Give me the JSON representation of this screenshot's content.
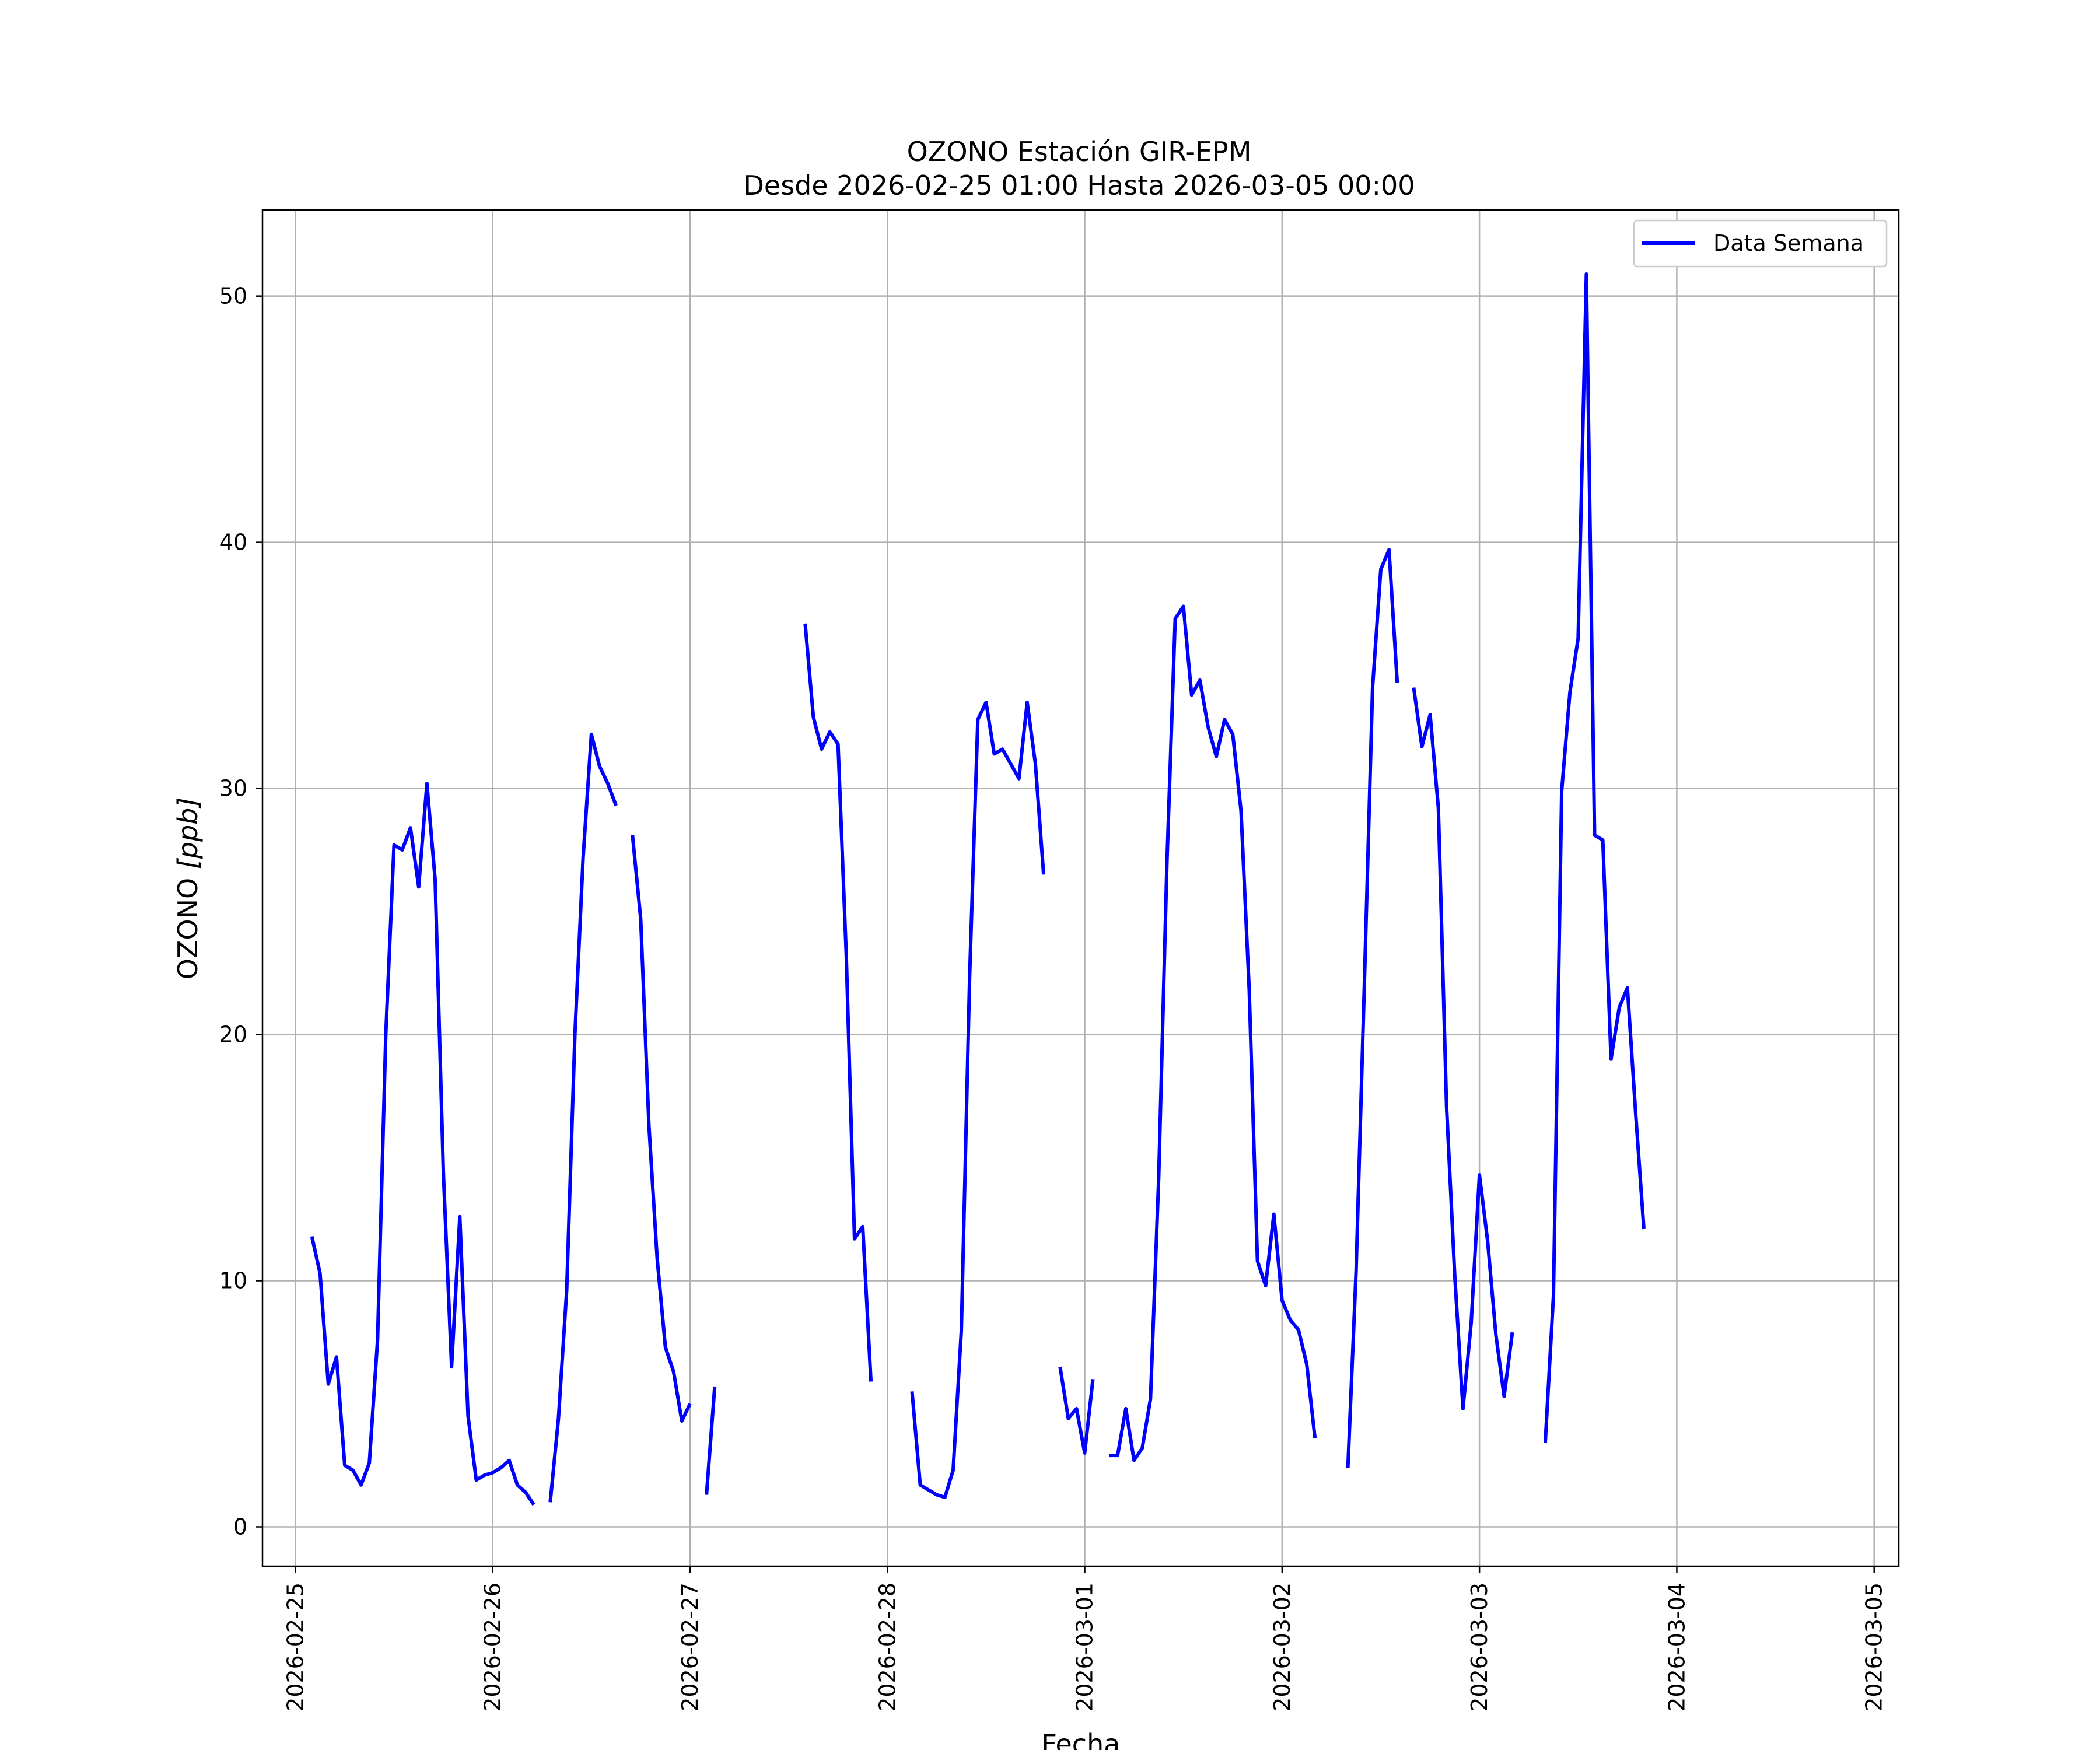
{
  "chart_data": {
    "type": "line",
    "title": "OZONO Estación GIR-EPM",
    "subtitle": "Desde 2026-02-25 01:00 Hasta 2026-03-05 00:00",
    "xlabel": "Fecha",
    "ylabel": "OZONO [ppb]",
    "ylabel_main": "OZONO ",
    "ylabel_unit": "[ppb]",
    "xlim": [
      "2026-02-24 20:00",
      "2026-03-05 03:00"
    ],
    "ylim": [
      -1.6,
      53.5
    ],
    "x_ticks": [
      "2026-02-25",
      "2026-02-26",
      "2026-02-27",
      "2026-02-28",
      "2026-03-01",
      "2026-03-02",
      "2026-03-03",
      "2026-03-04",
      "2026-03-05"
    ],
    "y_ticks": [
      0,
      10,
      20,
      30,
      40,
      50
    ],
    "grid": true,
    "legend_position": "upper right",
    "series": [
      {
        "name": "Data Semana",
        "color": "#0000ff",
        "segments": [
          [
            [
              "2026-02-25 02:00",
              11.8
            ],
            [
              "2026-02-25 03:00",
              10.3
            ],
            [
              "2026-02-25 04:00",
              5.8
            ],
            [
              "2026-02-25 05:00",
              6.9
            ],
            [
              "2026-02-25 06:00",
              2.5
            ],
            [
              "2026-02-25 07:00",
              2.3
            ],
            [
              "2026-02-25 08:00",
              1.7
            ],
            [
              "2026-02-25 09:00",
              2.6
            ],
            [
              "2026-02-25 10:00",
              7.6
            ],
            [
              "2026-02-25 11:00",
              20.0
            ],
            [
              "2026-02-25 12:00",
              27.7
            ],
            [
              "2026-02-25 13:00",
              27.5
            ],
            [
              "2026-02-25 14:00",
              28.4
            ],
            [
              "2026-02-25 15:00",
              26.0
            ],
            [
              "2026-02-25 16:00",
              30.2
            ],
            [
              "2026-02-25 17:00",
              26.3
            ],
            [
              "2026-02-25 18:00",
              14.4
            ],
            [
              "2026-02-25 19:00",
              6.5
            ],
            [
              "2026-02-25 20:00",
              12.6
            ],
            [
              "2026-02-25 21:00",
              4.5
            ],
            [
              "2026-02-25 22:00",
              1.9
            ],
            [
              "2026-02-25 23:00",
              2.1
            ],
            [
              "2026-02-26 00:00",
              2.2
            ],
            [
              "2026-02-26 01:00",
              2.4
            ],
            [
              "2026-02-26 02:00",
              2.7
            ],
            [
              "2026-02-26 03:00",
              1.7
            ],
            [
              "2026-02-26 04:00",
              1.4
            ],
            [
              "2026-02-26 05:00",
              0.9
            ]
          ],
          [
            [
              "2026-02-26 07:00",
              1.0
            ],
            [
              "2026-02-26 08:00",
              4.4
            ],
            [
              "2026-02-26 09:00",
              9.6
            ],
            [
              "2026-02-26 10:00",
              20.0
            ],
            [
              "2026-02-26 11:00",
              27.2
            ],
            [
              "2026-02-26 12:00",
              32.2
            ],
            [
              "2026-02-26 13:00",
              30.9
            ],
            [
              "2026-02-26 14:00",
              30.2
            ],
            [
              "2026-02-26 15:00",
              29.3
            ]
          ],
          [
            [
              "2026-02-26 17:00",
              28.1
            ],
            [
              "2026-02-26 18:00",
              24.7
            ],
            [
              "2026-02-26 19:00",
              16.3
            ],
            [
              "2026-02-26 20:00",
              10.9
            ],
            [
              "2026-02-26 21:00",
              7.3
            ],
            [
              "2026-02-26 22:00",
              6.3
            ],
            [
              "2026-02-26 23:00",
              4.3
            ],
            [
              "2026-02-27 00:00",
              5.0
            ]
          ],
          [
            [
              "2026-02-27 02:00",
              1.3
            ],
            [
              "2026-02-27 03:00",
              5.7
            ]
          ],
          [
            [
              "2026-02-27 14:00",
              36.7
            ],
            [
              "2026-02-27 15:00",
              32.9
            ],
            [
              "2026-02-27 16:00",
              31.6
            ],
            [
              "2026-02-27 17:00",
              32.3
            ],
            [
              "2026-02-27 18:00",
              31.8
            ],
            [
              "2026-02-27 19:00",
              23.2
            ],
            [
              "2026-02-27 20:00",
              11.7
            ],
            [
              "2026-02-27 21:00",
              12.2
            ],
            [
              "2026-02-27 22:00",
              5.9
            ]
          ],
          [
            [
              "2026-02-28 03:00",
              5.5
            ],
            [
              "2026-02-28 04:00",
              1.7
            ],
            [
              "2026-02-28 05:00",
              1.5
            ],
            [
              "2026-02-28 06:00",
              1.3
            ],
            [
              "2026-02-28 07:00",
              1.2
            ],
            [
              "2026-02-28 08:00",
              2.3
            ],
            [
              "2026-02-28 09:00",
              8.0
            ],
            [
              "2026-02-28 10:00",
              22.3
            ],
            [
              "2026-02-28 11:00",
              32.8
            ],
            [
              "2026-02-28 12:00",
              33.5
            ],
            [
              "2026-02-28 13:00",
              31.4
            ],
            [
              "2026-02-28 14:00",
              31.6
            ],
            [
              "2026-02-28 15:00",
              31.0
            ],
            [
              "2026-02-28 16:00",
              30.4
            ],
            [
              "2026-02-28 17:00",
              33.5
            ],
            [
              "2026-02-28 18:00",
              31.0
            ],
            [
              "2026-02-28 19:00",
              26.5
            ]
          ],
          [
            [
              "2026-02-28 21:00",
              6.5
            ],
            [
              "2026-02-28 22:00",
              4.4
            ],
            [
              "2026-02-28 23:00",
              4.8
            ],
            [
              "2026-03-01 00:00",
              3.0
            ],
            [
              "2026-03-01 01:00",
              6.0
            ]
          ],
          [
            [
              "2026-03-01 03:00",
              2.9
            ],
            [
              "2026-03-01 04:00",
              2.9
            ],
            [
              "2026-03-01 05:00",
              4.8
            ],
            [
              "2026-03-01 06:00",
              2.7
            ],
            [
              "2026-03-01 07:00",
              3.2
            ],
            [
              "2026-03-01 08:00",
              5.2
            ],
            [
              "2026-03-01 09:00",
              14.2
            ],
            [
              "2026-03-01 10:00",
              27.0
            ],
            [
              "2026-03-01 11:00",
              36.9
            ],
            [
              "2026-03-01 12:00",
              37.4
            ],
            [
              "2026-03-01 13:00",
              33.8
            ],
            [
              "2026-03-01 14:00",
              34.4
            ],
            [
              "2026-03-01 15:00",
              32.5
            ],
            [
              "2026-03-01 16:00",
              31.3
            ],
            [
              "2026-03-01 17:00",
              32.8
            ],
            [
              "2026-03-01 18:00",
              32.2
            ],
            [
              "2026-03-01 19:00",
              29.1
            ],
            [
              "2026-03-01 20:00",
              21.8
            ],
            [
              "2026-03-01 21:00",
              10.8
            ],
            [
              "2026-03-01 22:00",
              9.8
            ],
            [
              "2026-03-01 23:00",
              12.7
            ],
            [
              "2026-03-02 00:00",
              9.2
            ],
            [
              "2026-03-02 01:00",
              8.4
            ],
            [
              "2026-03-02 02:00",
              8.0
            ],
            [
              "2026-03-02 03:00",
              6.6
            ],
            [
              "2026-03-02 04:00",
              3.6
            ]
          ],
          [
            [
              "2026-03-02 08:00",
              2.4
            ],
            [
              "2026-03-02 09:00",
              10.4
            ],
            [
              "2026-03-02 10:00",
              22.0
            ],
            [
              "2026-03-02 11:00",
              34.1
            ],
            [
              "2026-03-02 12:00",
              38.9
            ],
            [
              "2026-03-02 13:00",
              39.7
            ],
            [
              "2026-03-02 14:00",
              34.3
            ]
          ],
          [
            [
              "2026-03-02 16:00",
              34.1
            ],
            [
              "2026-03-02 17:00",
              31.7
            ],
            [
              "2026-03-02 18:00",
              33.0
            ],
            [
              "2026-03-02 19:00",
              29.2
            ],
            [
              "2026-03-02 20:00",
              17.1
            ],
            [
              "2026-03-02 21:00",
              10.2
            ],
            [
              "2026-03-02 22:00",
              4.8
            ],
            [
              "2026-03-02 23:00",
              8.3
            ],
            [
              "2026-03-03 00:00",
              14.3
            ],
            [
              "2026-03-03 01:00",
              11.6
            ],
            [
              "2026-03-03 02:00",
              7.8
            ],
            [
              "2026-03-03 03:00",
              5.3
            ],
            [
              "2026-03-03 04:00",
              7.9
            ]
          ],
          [
            [
              "2026-03-03 08:00",
              3.4
            ],
            [
              "2026-03-03 09:00",
              9.4
            ],
            [
              "2026-03-03 10:00",
              29.9
            ],
            [
              "2026-03-03 11:00",
              33.9
            ],
            [
              "2026-03-03 12:00",
              36.1
            ],
            [
              "2026-03-03 13:00",
              50.9
            ],
            [
              "2026-03-03 14:00",
              28.1
            ],
            [
              "2026-03-03 15:00",
              27.9
            ],
            [
              "2026-03-03 16:00",
              19.0
            ],
            [
              "2026-03-03 17:00",
              21.1
            ],
            [
              "2026-03-03 18:00",
              21.9
            ],
            [
              "2026-03-03 19:00",
              16.8
            ],
            [
              "2026-03-03 20:00",
              12.1
            ]
          ]
        ]
      }
    ]
  }
}
